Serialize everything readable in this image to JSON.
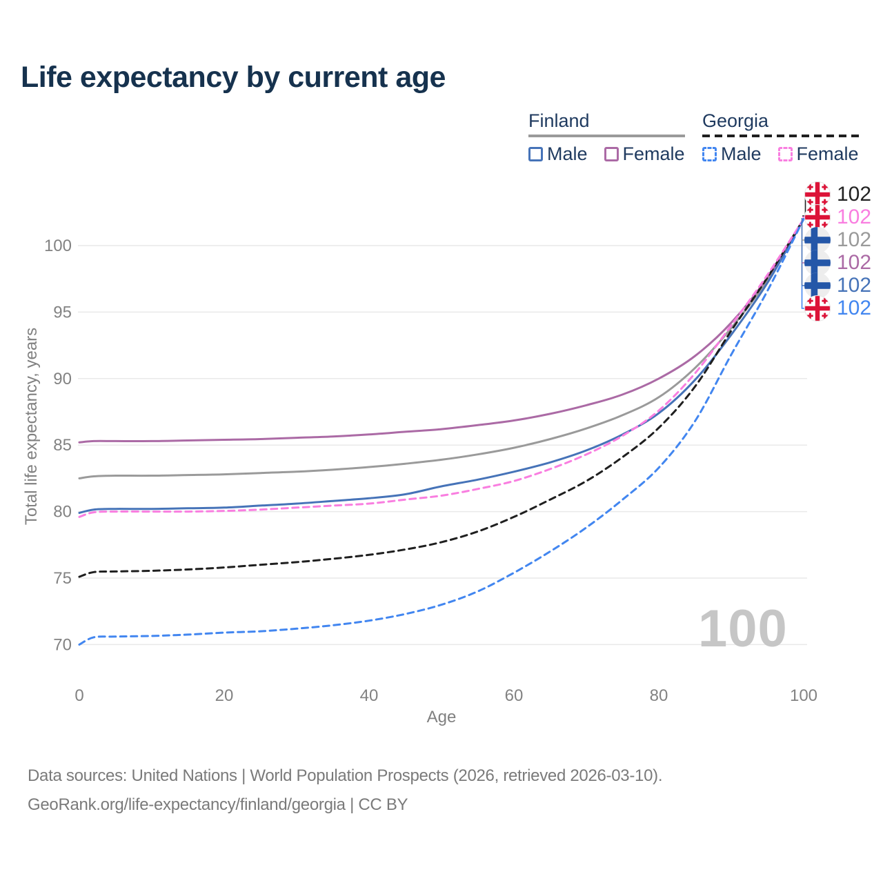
{
  "title": "Life expectancy by current age",
  "legend": {
    "finland": {
      "title": "Finland",
      "male": "Male",
      "female": "Female",
      "male_color": "#4673b8",
      "female_color": "#ab6aa5",
      "rule_color": "#9a9a9a",
      "line_style": "solid"
    },
    "georgia": {
      "title": "Georgia",
      "male": "Male",
      "female": "Female",
      "male_color": "#4286f0",
      "female_color": "#f97ee0",
      "rule_color": "#1f1f1f",
      "line_style": "dashed"
    }
  },
  "chart_data": {
    "type": "line",
    "title": "Life expectancy by current age",
    "xlabel": "Age",
    "ylabel": "Total life expectancy, years",
    "x_ticks": [
      0,
      20,
      40,
      60,
      80,
      100
    ],
    "y_ticks": [
      70,
      75,
      80,
      85,
      90,
      95,
      100
    ],
    "xlim": [
      0,
      100
    ],
    "ylim": [
      69,
      103
    ],
    "grid": "horizontal",
    "legend_position": "top-right",
    "ages": [
      0,
      2,
      5,
      10,
      15,
      20,
      25,
      30,
      35,
      40,
      45,
      50,
      55,
      60,
      65,
      70,
      75,
      80,
      85,
      90,
      95,
      100
    ],
    "series": [
      {
        "name": "Finland",
        "country": "Finland",
        "sex": "both",
        "style": "solid",
        "color": "#9a9a9a",
        "values": [
          82.5,
          82.65,
          82.7,
          82.7,
          82.75,
          82.8,
          82.9,
          83.0,
          83.15,
          83.35,
          83.6,
          83.9,
          84.3,
          84.8,
          85.45,
          86.25,
          87.25,
          88.6,
          90.8,
          93.8,
          97.4,
          102
        ]
      },
      {
        "name": "Finland Female",
        "country": "Finland",
        "sex": "female",
        "style": "solid",
        "color": "#ab6aa5",
        "values": [
          85.2,
          85.3,
          85.3,
          85.3,
          85.35,
          85.4,
          85.45,
          85.55,
          85.65,
          85.8,
          86.0,
          86.2,
          86.5,
          86.85,
          87.35,
          88.0,
          88.8,
          90.0,
          91.7,
          94.2,
          97.6,
          102
        ]
      },
      {
        "name": "Finland Male",
        "country": "Finland",
        "sex": "male",
        "style": "solid",
        "color": "#4673b8",
        "values": [
          79.9,
          80.15,
          80.2,
          80.2,
          80.25,
          80.3,
          80.45,
          80.6,
          80.8,
          81.0,
          81.3,
          81.9,
          82.4,
          83.0,
          83.7,
          84.6,
          85.8,
          87.4,
          89.9,
          93.3,
          97.2,
          102
        ]
      },
      {
        "name": "Georgia",
        "country": "Georgia",
        "sex": "both",
        "style": "dashed",
        "color": "#1f1f1f",
        "values": [
          75.1,
          75.45,
          75.5,
          75.55,
          75.65,
          75.8,
          76.0,
          76.2,
          76.45,
          76.75,
          77.15,
          77.7,
          78.5,
          79.6,
          80.9,
          82.3,
          84.1,
          86.3,
          89.4,
          93.6,
          97.6,
          102
        ]
      },
      {
        "name": "Georgia Female",
        "country": "Georgia",
        "sex": "female",
        "style": "dashed",
        "color": "#f97ee0",
        "values": [
          79.6,
          79.95,
          80.0,
          80.0,
          80.0,
          80.05,
          80.15,
          80.3,
          80.45,
          80.6,
          80.9,
          81.2,
          81.7,
          82.3,
          83.2,
          84.3,
          85.7,
          87.6,
          90.4,
          94.0,
          97.8,
          102
        ]
      },
      {
        "name": "Georgia Male",
        "country": "Georgia",
        "sex": "male",
        "style": "dashed",
        "color": "#4286f0",
        "values": [
          70.0,
          70.55,
          70.6,
          70.65,
          70.75,
          70.9,
          71.0,
          71.2,
          71.45,
          71.8,
          72.3,
          73.0,
          74.0,
          75.4,
          77.0,
          78.8,
          80.9,
          83.3,
          86.8,
          91.8,
          96.6,
          102
        ]
      }
    ]
  },
  "end_labels": [
    {
      "text": "102",
      "flag": "georgia",
      "flag_ref": "#flag-georgia",
      "color": "#222222",
      "series": "Georgia"
    },
    {
      "text": "102",
      "flag": "georgia",
      "flag_ref": "#flag-georgia",
      "color": "#f97ee0",
      "series": "Georgia Female"
    },
    {
      "text": "102",
      "flag": "finland",
      "flag_ref": "#flag-finland",
      "color": "#9a9a9a",
      "series": "Finland"
    },
    {
      "text": "102",
      "flag": "finland",
      "flag_ref": "#flag-finland",
      "color": "#ab6aa5",
      "series": "Finland Female"
    },
    {
      "text": "102",
      "flag": "finland",
      "flag_ref": "#flag-finland",
      "color": "#4673b8",
      "series": "Finland Male"
    },
    {
      "text": "102",
      "flag": "georgia",
      "flag_ref": "#flag-georgia",
      "color": "#4286f0",
      "series": "Georgia Male"
    }
  ],
  "watermark": "100",
  "footer": {
    "line1": "Data sources: United Nations | World Population Prospects (2026, retrieved 2026-03-10).",
    "line2": "GeoRank.org/life-expectancy/finland/georgia | CC BY"
  }
}
